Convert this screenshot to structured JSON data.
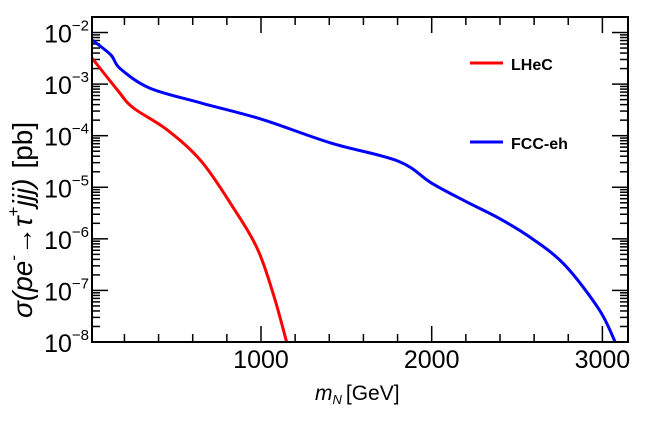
{
  "chart_data": {
    "type": "line",
    "title": "",
    "xlabel": {
      "var": "m",
      "sub": "N",
      "unit": "[GeV]"
    },
    "ylabel": {
      "prefix": "σ(pe",
      "sup1": "-",
      "arrow": "→τ",
      "sup2": "+",
      "rest": "jjj)",
      "unit": "[pb]"
    },
    "xlim": [
      10,
      3150
    ],
    "ylim": [
      1e-08,
      0.02
    ],
    "yscale": "log",
    "grid": false,
    "legend_position": "top-right",
    "x_ticks": [
      1000,
      2000,
      3000
    ],
    "x_tick_labels": [
      "1000",
      "2000",
      "3000"
    ],
    "y_ticks": [
      {
        "value": 1e-08,
        "base": "10",
        "exp": "−8"
      },
      {
        "value": 1e-07,
        "base": "10",
        "exp": "−7"
      },
      {
        "value": 1e-06,
        "base": "10",
        "exp": "−6"
      },
      {
        "value": 1e-05,
        "base": "10",
        "exp": "−5"
      },
      {
        "value": 0.0001,
        "base": "10",
        "exp": "−4"
      },
      {
        "value": 0.001,
        "base": "10",
        "exp": "−3"
      },
      {
        "value": 0.01,
        "base": "10",
        "exp": "−2"
      }
    ],
    "series": [
      {
        "name": "LHeC",
        "color": "#ff0000",
        "x": [
          10,
          160,
          250,
          450,
          650,
          840,
          980,
          1075,
          1150
        ],
        "y": [
          0.0032,
          0.00076,
          0.00035,
          0.00013,
          3.2e-05,
          3.9e-06,
          6.3e-07,
          7.9e-08,
          1e-08
        ]
      },
      {
        "name": "FCC-eh",
        "color": "#0000ff",
        "x": [
          10,
          120,
          175,
          350,
          650,
          1000,
          1410,
          1805,
          2000,
          2195,
          2395,
          2590,
          2780,
          2980,
          3075
        ],
        "y": [
          0.0072,
          0.0037,
          0.002,
          0.00083,
          0.00043,
          0.00021,
          7.2e-05,
          3.2e-05,
          1.2e-05,
          5.4e-06,
          2.5e-06,
          1e-06,
          3.1e-07,
          4.3e-08,
          1e-08
        ]
      }
    ]
  }
}
